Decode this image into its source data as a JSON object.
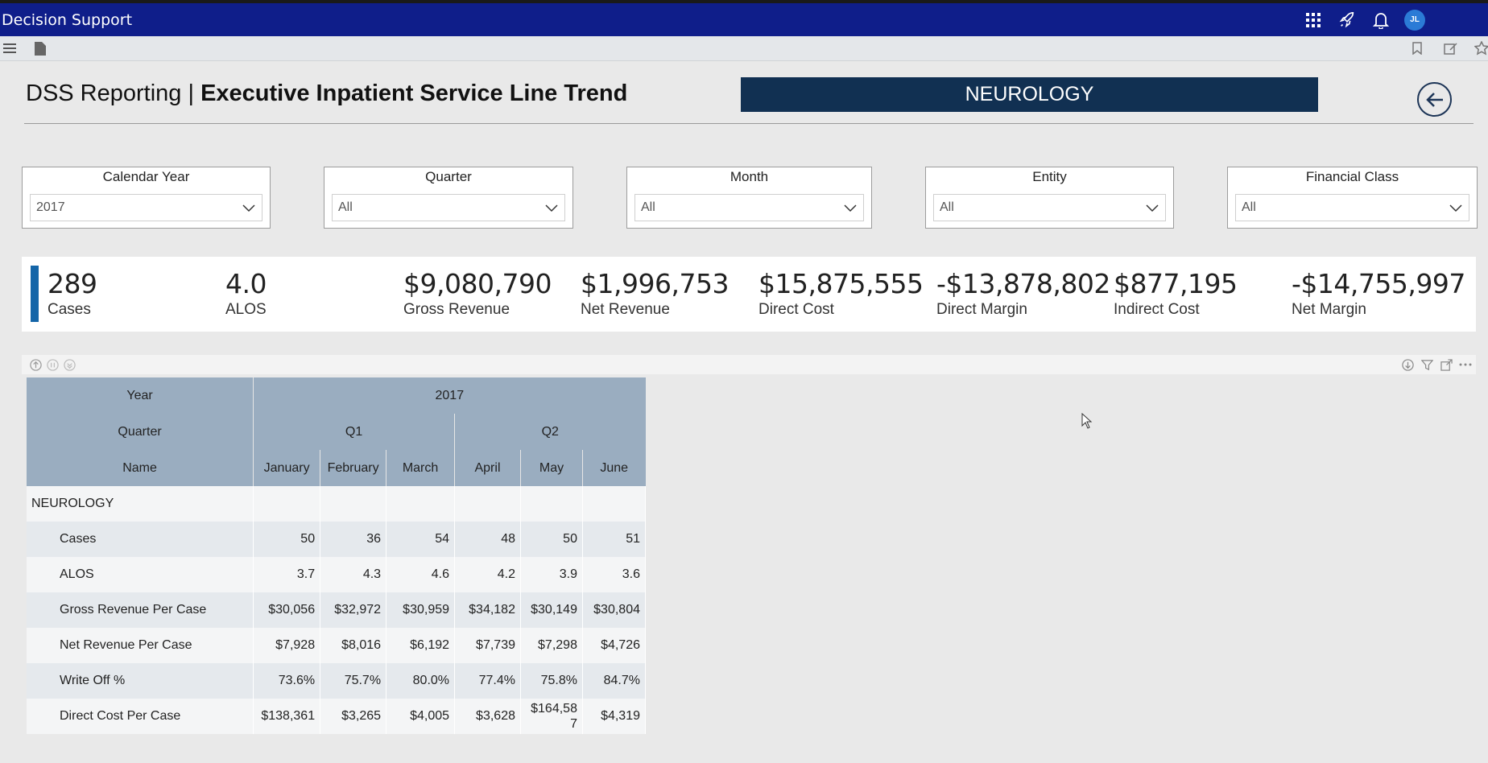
{
  "app": {
    "title": "Decision Support",
    "avatar_initials": "JL"
  },
  "report": {
    "title_prefix": "DSS Reporting | ",
    "title_main": "Executive Inpatient Service Line Trend",
    "service_line": "NEUROLOGY"
  },
  "slicers": [
    {
      "label": "Calendar Year",
      "value": "2017"
    },
    {
      "label": "Quarter",
      "value": "All"
    },
    {
      "label": "Month",
      "value": "All"
    },
    {
      "label": "Entity",
      "value": "All"
    },
    {
      "label": "Financial Class",
      "value": "All"
    }
  ],
  "kpis": [
    {
      "value": "289",
      "label": "Cases"
    },
    {
      "value": "4.0",
      "label": "ALOS"
    },
    {
      "value": "$9,080,790",
      "label": "Gross Revenue"
    },
    {
      "value": "$1,996,753",
      "label": "Net Revenue"
    },
    {
      "value": "$15,875,555",
      "label": "Direct Cost"
    },
    {
      "value": "-$13,878,802",
      "label": "Direct Margin"
    },
    {
      "value": "$877,195",
      "label": "Indirect Cost"
    },
    {
      "value": "-$14,755,997",
      "label": "Net Margin"
    }
  ],
  "matrix": {
    "header_labels": {
      "year": "Year",
      "quarter": "Quarter",
      "name": "Name"
    },
    "year": "2017",
    "quarters": [
      "Q1",
      "Q2"
    ],
    "months": [
      "January",
      "February",
      "March",
      "April",
      "May",
      "June"
    ],
    "group": "NEUROLOGY",
    "rows": [
      {
        "label": "Cases",
        "values": [
          "50",
          "36",
          "54",
          "48",
          "50",
          "51"
        ]
      },
      {
        "label": "ALOS",
        "values": [
          "3.7",
          "4.3",
          "4.6",
          "4.2",
          "3.9",
          "3.6"
        ]
      },
      {
        "label": "Gross Revenue Per Case",
        "values": [
          "$30,056",
          "$32,972",
          "$30,959",
          "$34,182",
          "$30,149",
          "$30,804"
        ]
      },
      {
        "label": "Net Revenue Per Case",
        "values": [
          "$7,928",
          "$8,016",
          "$6,192",
          "$7,739",
          "$7,298",
          "$4,726"
        ]
      },
      {
        "label": "Write Off %",
        "values": [
          "73.6%",
          "75.7%",
          "80.0%",
          "77.4%",
          "75.8%",
          "84.7%"
        ]
      },
      {
        "label": "Direct Cost Per Case",
        "values": [
          "$138,361",
          "$3,265",
          "$4,005",
          "$3,628",
          "$164,58\n7",
          "$4,319"
        ]
      }
    ]
  },
  "icons": {
    "titlebar": [
      "apps-grid-icon",
      "rocket-icon",
      "bell-icon",
      "avatar"
    ],
    "toolbar": [
      "menu-icon",
      "page-icon",
      "bookmark-icon",
      "edit-icon",
      "star-icon"
    ],
    "visual_header": [
      "drill-up-icon",
      "drill-down-icon",
      "expand-all-icon",
      "drill-mode-icon",
      "filter-icon",
      "focus-mode-icon",
      "more-options-icon"
    ]
  },
  "colors": {
    "titlebar": "#0f1e8a",
    "banner": "#113052",
    "kpi_accent": "#1465a8",
    "matrix_header": "#9aadc0"
  }
}
